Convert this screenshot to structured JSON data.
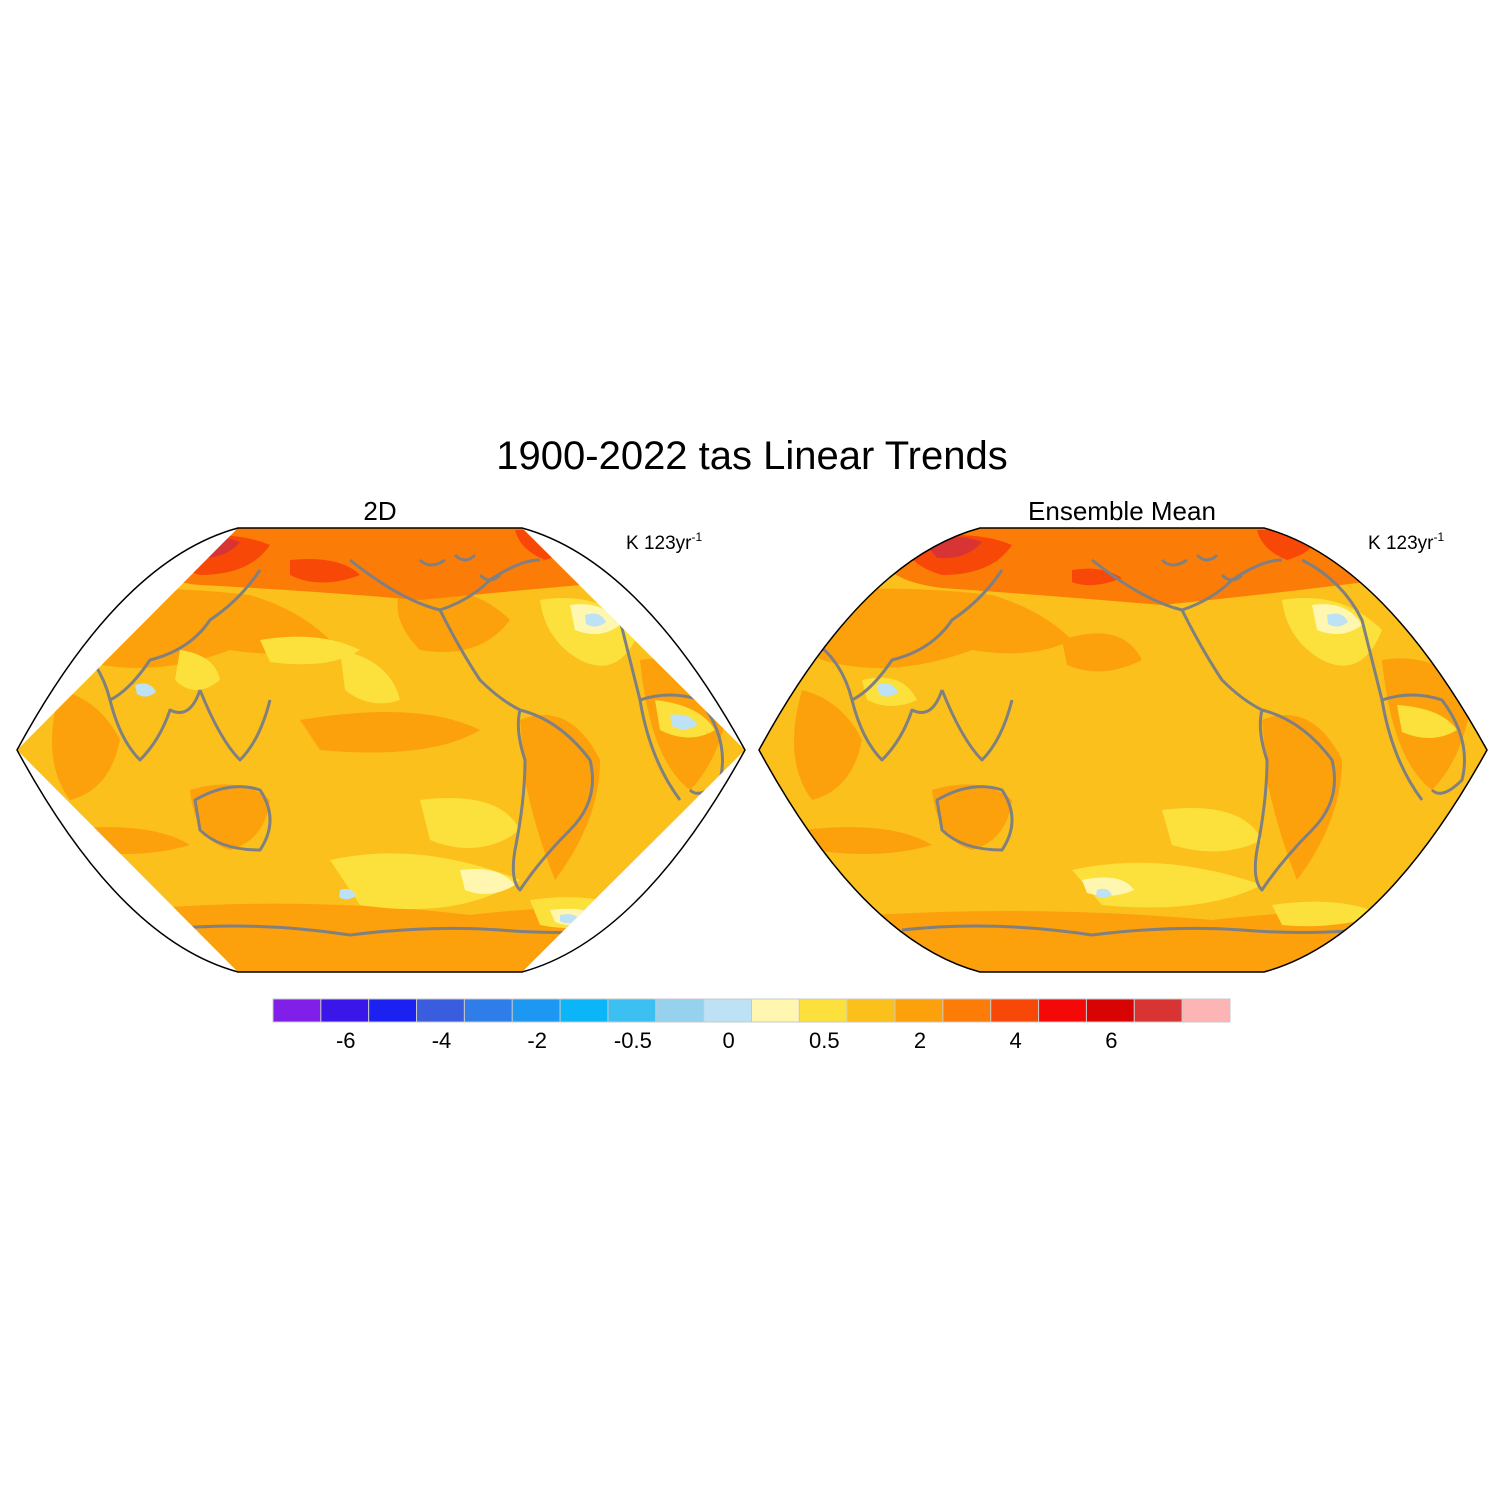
{
  "title": "1900-2022 tas Linear Trends",
  "panels": [
    {
      "title": "2D",
      "units": "K 123yr",
      "units_exponent": "-1"
    },
    {
      "title": "Ensemble Mean",
      "units": "K 123yr",
      "units_exponent": "-1"
    }
  ],
  "colorbar": {
    "colors": [
      "#7f1fe8",
      "#3a16e8",
      "#1a21f0",
      "#3a5de0",
      "#2f7de8",
      "#1c97f2",
      "#0cb4f8",
      "#3cc0f2",
      "#96d2ee",
      "#bde1f5",
      "#fff7b0",
      "#fce03c",
      "#fcc01c",
      "#fca00c",
      "#fc7c08",
      "#f84808",
      "#f40808",
      "#d80404",
      "#d83434",
      "#fcb4b4"
    ],
    "tick_labels": [
      "-6",
      "-4",
      "-2",
      "-0.5",
      "0",
      "0.5",
      "2",
      "4",
      "6"
    ],
    "tick_boundaries": [
      2,
      4,
      6,
      8,
      10,
      12,
      14,
      16,
      18
    ]
  },
  "map_colors": {
    "base": "#fcc01c",
    "warm": "#fca00c",
    "warmer": "#fc7c08",
    "hot": "#f84808",
    "hottest": "#d83434",
    "light": "#fce03c",
    "pale": "#fff7b0",
    "cool": "#bde1f5",
    "coast": "#808080"
  }
}
